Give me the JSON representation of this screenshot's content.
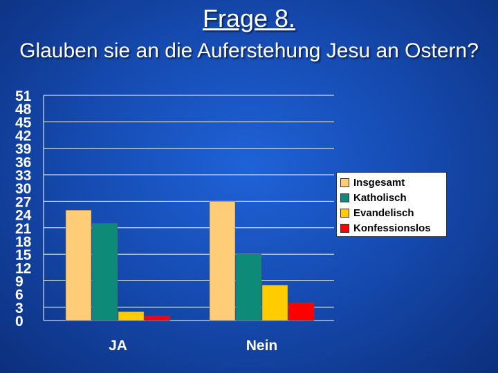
{
  "slide": {
    "title": "Frage 8.",
    "subtitle": "Glauben sie an die Auferstehung Jesu an Ostern?"
  },
  "chart_data": {
    "type": "bar",
    "categories": [
      "JA",
      "Nein"
    ],
    "series": [
      {
        "name": "Insgesamt",
        "values": [
          25,
          27
        ],
        "color": "#ffcc77"
      },
      {
        "name": "Katholisch",
        "values": [
          22,
          15
        ],
        "color": "#0e8a78"
      },
      {
        "name": "Evandelisch",
        "values": [
          2,
          8
        ],
        "color": "#ffcc00"
      },
      {
        "name": "Konfessionslos",
        "values": [
          1,
          4
        ],
        "color": "#ff0000"
      }
    ],
    "yticks": [
      "0",
      "3",
      "6",
      "9",
      "12",
      "15",
      "18",
      "21",
      "24",
      "27",
      "30",
      "33",
      "36",
      "39",
      "42",
      "45",
      "48",
      "51"
    ],
    "ylim": [
      0,
      51
    ],
    "grid": true,
    "legend_position": "right"
  }
}
